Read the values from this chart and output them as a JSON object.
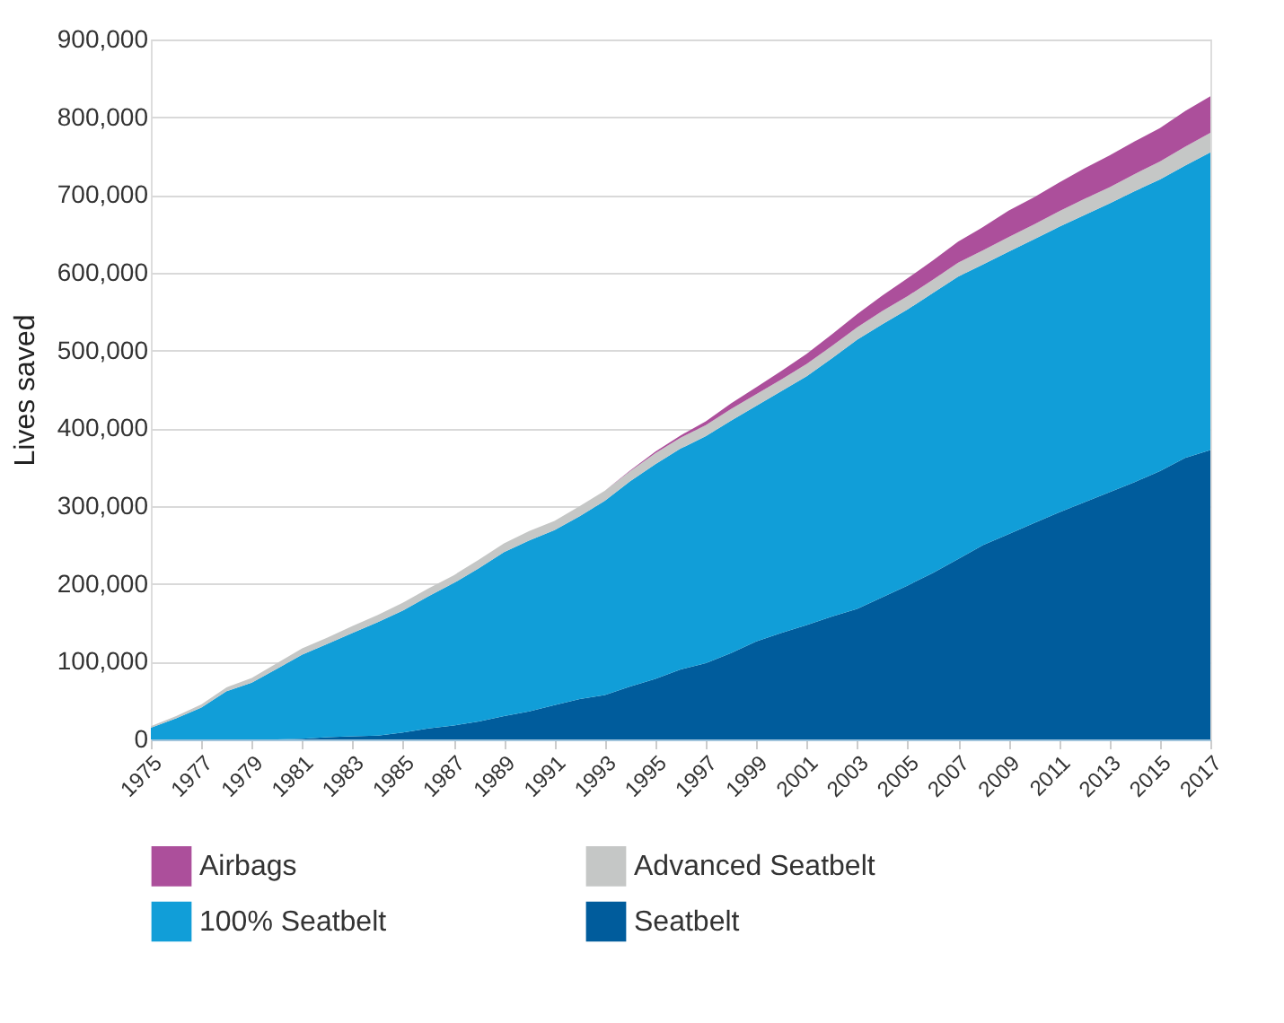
{
  "chart_data": {
    "type": "area",
    "stacked": true,
    "ylabel": "Lives saved",
    "x": [
      1975,
      1976,
      1977,
      1978,
      1979,
      1980,
      1981,
      1982,
      1983,
      1984,
      1985,
      1986,
      1987,
      1988,
      1989,
      1990,
      1991,
      1992,
      1993,
      1994,
      1995,
      1996,
      1997,
      1998,
      1999,
      2000,
      2001,
      2002,
      2003,
      2004,
      2005,
      2006,
      2007,
      2008,
      2009,
      2010,
      2011,
      2012,
      2013,
      2014,
      2015,
      2016,
      2017
    ],
    "series": [
      {
        "name": "Seatbelt",
        "color": "#005c9c",
        "values": [
          0,
          0,
          0,
          0,
          0,
          0,
          1000,
          3000,
          4000,
          5000,
          9000,
          14000,
          18000,
          23000,
          30000,
          36000,
          44000,
          52000,
          57000,
          68000,
          78000,
          90000,
          98000,
          111000,
          126000,
          137000,
          147000,
          158000,
          168000,
          183000,
          198000,
          214000,
          232000,
          250000,
          264000,
          278000,
          292000,
          305000,
          318000,
          331000,
          345000,
          362000,
          372000
        ]
      },
      {
        "name": "100% Seatbelt",
        "color": "#119ed8",
        "values": [
          15000,
          27000,
          41000,
          62000,
          73000,
          91000,
          108000,
          120000,
          133000,
          146000,
          157000,
          170000,
          183000,
          197000,
          211000,
          220000,
          225000,
          235000,
          250000,
          264000,
          276000,
          284000,
          292000,
          299000,
          303000,
          311000,
          320000,
          332000,
          346000,
          351000,
          355000,
          360000,
          363000,
          361000,
          363000,
          365000,
          367000,
          369000,
          371000,
          374000,
          375000,
          376000,
          383000
        ]
      },
      {
        "name": "Advanced Seatbelt",
        "color": "#c5c7c6",
        "values": [
          2000,
          3000,
          4000,
          5000,
          6000,
          7000,
          8000,
          8000,
          9000,
          9000,
          10000,
          10000,
          10000,
          11000,
          11000,
          12000,
          12000,
          13000,
          13000,
          13000,
          14000,
          14000,
          14000,
          15000,
          15000,
          15000,
          16000,
          16000,
          16000,
          17000,
          17000,
          17000,
          18000,
          18000,
          19000,
          19000,
          20000,
          21000,
          21000,
          22000,
          23000,
          24000,
          25000
        ]
      },
      {
        "name": "Airbags",
        "color": "#ac4f9b",
        "values": [
          0,
          0,
          0,
          0,
          0,
          0,
          0,
          0,
          0,
          0,
          0,
          0,
          0,
          0,
          0,
          0,
          0,
          0,
          0,
          1000,
          2000,
          3000,
          5000,
          7000,
          9000,
          11000,
          13000,
          15000,
          17000,
          20000,
          23000,
          25000,
          27000,
          30000,
          34000,
          35000,
          37000,
          39000,
          41000,
          42000,
          43000,
          46000,
          47000
        ]
      }
    ],
    "xlim": [
      1975,
      2017
    ],
    "xticks": [
      1975,
      1977,
      1979,
      1981,
      1983,
      1985,
      1987,
      1989,
      1991,
      1993,
      1995,
      1997,
      1999,
      2001,
      2003,
      2005,
      2007,
      2009,
      2011,
      2013,
      2015,
      2017
    ],
    "ylim": [
      0,
      900000
    ],
    "yticks": [
      0,
      {
        "value": 100000,
        "label": "100,000"
      },
      {
        "value": 200000,
        "label": "200,000"
      },
      {
        "value": 300000,
        "label": "300,000"
      },
      {
        "value": 400000,
        "label": "400,000"
      },
      {
        "value": 500000,
        "label": "500,000"
      },
      {
        "value": 600000,
        "label": "600,000"
      },
      {
        "value": 700000,
        "label": "700,000"
      },
      {
        "value": 800000,
        "label": "800,000"
      },
      {
        "value": 900000,
        "label": "900,000"
      }
    ],
    "grid": "y",
    "legend": "bottom"
  }
}
